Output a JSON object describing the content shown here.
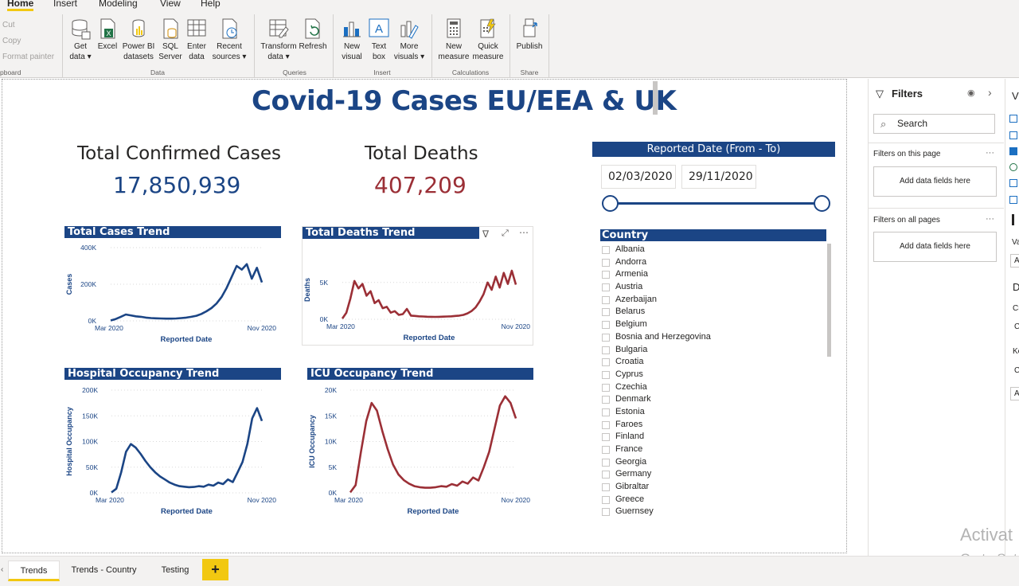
{
  "menu": {
    "tabs": [
      "Home",
      "Insert",
      "Modeling",
      "View",
      "Help"
    ],
    "active_tab": "Home"
  },
  "ribbon": {
    "clipboard": {
      "cut": "Cut",
      "copy": "Copy",
      "format_painter": "Format painter",
      "group_label": "pboard"
    },
    "data_group": {
      "label": "Data",
      "buttons": [
        {
          "line1": "Get",
          "line2": "data ▾",
          "icon": "database-icon"
        },
        {
          "line1": "Excel",
          "line2": "",
          "icon": "excel-icon"
        },
        {
          "line1": "Power BI",
          "line2": "datasets",
          "icon": "powerbi-datasets-icon"
        },
        {
          "line1": "SQL",
          "line2": "Server",
          "icon": "sql-server-icon"
        },
        {
          "line1": "Enter",
          "line2": "data",
          "icon": "table-icon"
        },
        {
          "line1": "Recent",
          "line2": "sources ▾",
          "icon": "recent-sources-icon"
        }
      ]
    },
    "queries_group": {
      "label": "Queries",
      "buttons": [
        {
          "line1": "Transform",
          "line2": "data ▾",
          "icon": "transform-icon"
        },
        {
          "line1": "Refresh",
          "line2": "",
          "icon": "refresh-icon"
        }
      ]
    },
    "insert_group": {
      "label": "Insert",
      "buttons": [
        {
          "line1": "New",
          "line2": "visual",
          "icon": "bar-chart-icon"
        },
        {
          "line1": "Text",
          "line2": "box",
          "icon": "textbox-icon"
        },
        {
          "line1": "More",
          "line2": "visuals ▾",
          "icon": "more-visuals-icon"
        }
      ]
    },
    "calculations_group": {
      "label": "Calculations",
      "buttons": [
        {
          "line1": "New",
          "line2": "measure",
          "icon": "calculator-icon"
        },
        {
          "line1": "Quick",
          "line2": "measure",
          "icon": "quick-measure-icon"
        }
      ]
    },
    "share_group": {
      "label": "Share",
      "buttons": [
        {
          "line1": "Publish",
          "line2": "",
          "icon": "publish-icon"
        }
      ]
    }
  },
  "report": {
    "title": "Covid-19 Cases EU/EEA & UK",
    "kpis": {
      "confirmed_label": "Total Confirmed Cases",
      "confirmed_value": "17,850,939",
      "deaths_label": "Total Deaths",
      "deaths_value": "407,209"
    },
    "colors": {
      "navy": "#1b4585",
      "red": "#9b2f36"
    },
    "date_slicer": {
      "header": "Reported Date (From - To)",
      "from": "02/03/2020",
      "to": "29/11/2020",
      "range_fraction": [
        0.0,
        1.0
      ]
    },
    "country_slicer": {
      "header": "Country",
      "items": [
        "Albania",
        "Andorra",
        "Armenia",
        "Austria",
        "Azerbaijan",
        "Belarus",
        "Belgium",
        "Bosnia and Herzegovina",
        "Bulgaria",
        "Croatia",
        "Cyprus",
        "Czechia",
        "Denmark",
        "Estonia",
        "Faroes",
        "Finland",
        "France",
        "Georgia",
        "Germany",
        "Gibraltar",
        "Greece",
        "Guernsey"
      ]
    }
  },
  "chart_data": [
    {
      "type": "line",
      "title": "Total Cases Trend",
      "xlabel": "Reported Date",
      "ylabel": "Cases",
      "x_ticks": [
        "Mar 2020",
        "Nov 2020"
      ],
      "y_ticks": [
        "0K",
        "200K",
        "400K"
      ],
      "ylim": [
        0,
        400000
      ],
      "color": "#1b4585",
      "series": [
        {
          "values": [
            2000,
            10000,
            22000,
            35000,
            30000,
            25000,
            22000,
            18000,
            15000,
            14000,
            13000,
            12000,
            12000,
            13000,
            15000,
            18000,
            22000,
            28000,
            38000,
            52000,
            70000,
            95000,
            130000,
            180000,
            240000,
            300000,
            280000,
            310000,
            230000,
            290000,
            210000
          ]
        }
      ]
    },
    {
      "type": "line",
      "title": "Total Deaths Trend",
      "xlabel": "Reported Date",
      "ylabel": "Deaths",
      "x_ticks": [
        "Mar 2020",
        "Nov 2020"
      ],
      "y_ticks": [
        "0K",
        "5K"
      ],
      "ylim": [
        0,
        8000
      ],
      "color": "#9b2f36",
      "series": [
        {
          "values": [
            100,
            900,
            2800,
            5200,
            4200,
            4800,
            3200,
            3800,
            2200,
            2600,
            1500,
            1700,
            900,
            1100,
            600,
            700,
            1400,
            500,
            450,
            400,
            380,
            350,
            330,
            320,
            340,
            360,
            380,
            400,
            450,
            500,
            600,
            800,
            1100,
            1600,
            2400,
            3400,
            5000,
            4000,
            5800,
            4300,
            6300,
            4800,
            6600,
            4700
          ]
        }
      ]
    },
    {
      "type": "line",
      "title": "Hospital Occupancy Trend",
      "xlabel": "Reported Date",
      "ylabel": "Hospital Occupancy",
      "x_ticks": [
        "Mar 2020",
        "Nov 2020"
      ],
      "y_ticks": [
        "0K",
        "50K",
        "100K",
        "150K",
        "200K"
      ],
      "ylim": [
        0,
        200000
      ],
      "color": "#1b4585",
      "series": [
        {
          "values": [
            1000,
            8000,
            40000,
            80000,
            95000,
            88000,
            76000,
            62000,
            50000,
            40000,
            32000,
            26000,
            20000,
            16000,
            13000,
            12000,
            11000,
            11500,
            13000,
            12000,
            16000,
            14000,
            20000,
            17000,
            26000,
            21000,
            40000,
            60000,
            95000,
            145000,
            165000,
            140000
          ]
        }
      ]
    },
    {
      "type": "line",
      "title": "ICU Occupancy Trend",
      "xlabel": "Reported Date",
      "ylabel": "ICU Occupancy",
      "x_ticks": [
        "Mar 2020",
        "Nov 2020"
      ],
      "y_ticks": [
        "0K",
        "5K",
        "10K",
        "15K",
        "20K"
      ],
      "ylim": [
        0,
        20000
      ],
      "color": "#9b2f36",
      "series": [
        {
          "values": [
            100,
            1500,
            8000,
            14000,
            17500,
            16000,
            12000,
            8500,
            5500,
            3600,
            2500,
            1800,
            1300,
            1100,
            1000,
            1000,
            1100,
            1300,
            1200,
            1700,
            1400,
            2200,
            1800,
            3000,
            2400,
            5000,
            8000,
            12500,
            17000,
            18800,
            17500,
            14500
          ]
        }
      ]
    }
  ],
  "filters_pane": {
    "title": "Filters",
    "search_placeholder": "Search",
    "on_this_page": "Filters on this page",
    "on_all_pages": "Filters on all pages",
    "add_data_fields": "Add data fields here",
    "more": "···"
  },
  "viz_pane": {
    "fragments": [
      "V",
      "Va",
      "A",
      "D",
      "Cr",
      "C",
      "Ke",
      "C",
      "Ac"
    ]
  },
  "watermark": {
    "line1": "Activat",
    "line2": "Go to Set"
  },
  "pages": {
    "tabs": [
      "Trends",
      "Trends - Country",
      "Testing"
    ],
    "active": "Trends",
    "add_label": "+"
  }
}
